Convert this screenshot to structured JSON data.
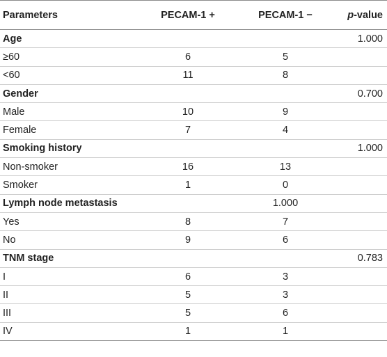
{
  "table": {
    "headers": {
      "parameters": "Parameters",
      "pos": "PECAM-1 +",
      "neg": "PECAM-1 −",
      "p_italic": "p",
      "p_rest": "-value"
    },
    "rows": [
      {
        "label": "Age",
        "pos": "",
        "neg": "",
        "p": "1.000"
      },
      {
        "label": "≥60",
        "pos": "6",
        "neg": "5",
        "p": ""
      },
      {
        "label": "<60",
        "pos": "11",
        "neg": "8",
        "p": ""
      },
      {
        "label": "Gender",
        "pos": "",
        "neg": "",
        "p": "0.700"
      },
      {
        "label": "Male",
        "pos": "10",
        "neg": "9",
        "p": ""
      },
      {
        "label": "Female",
        "pos": "7",
        "neg": "4",
        "p": ""
      },
      {
        "label": "Smoking history",
        "pos": "",
        "neg": "",
        "p": "1.000"
      },
      {
        "label": "Non-smoker",
        "pos": "16",
        "neg": "13",
        "p": ""
      },
      {
        "label": "Smoker",
        "pos": "1",
        "neg": "0",
        "p": ""
      },
      {
        "label": "Lymph node metastasis",
        "pos": "",
        "neg": "1.000",
        "p": ""
      },
      {
        "label": "Yes",
        "pos": "8",
        "neg": "7",
        "p": ""
      },
      {
        "label": "No",
        "pos": "9",
        "neg": "6",
        "p": ""
      },
      {
        "label": "TNM stage",
        "pos": "",
        "neg": "",
        "p": "0.783"
      },
      {
        "label": "I",
        "pos": "6",
        "neg": "3",
        "p": ""
      },
      {
        "label": "II",
        "pos": "5",
        "neg": "3",
        "p": ""
      },
      {
        "label": "III",
        "pos": "5",
        "neg": "6",
        "p": ""
      },
      {
        "label": "IV",
        "pos": "1",
        "neg": "1",
        "p": ""
      }
    ]
  }
}
